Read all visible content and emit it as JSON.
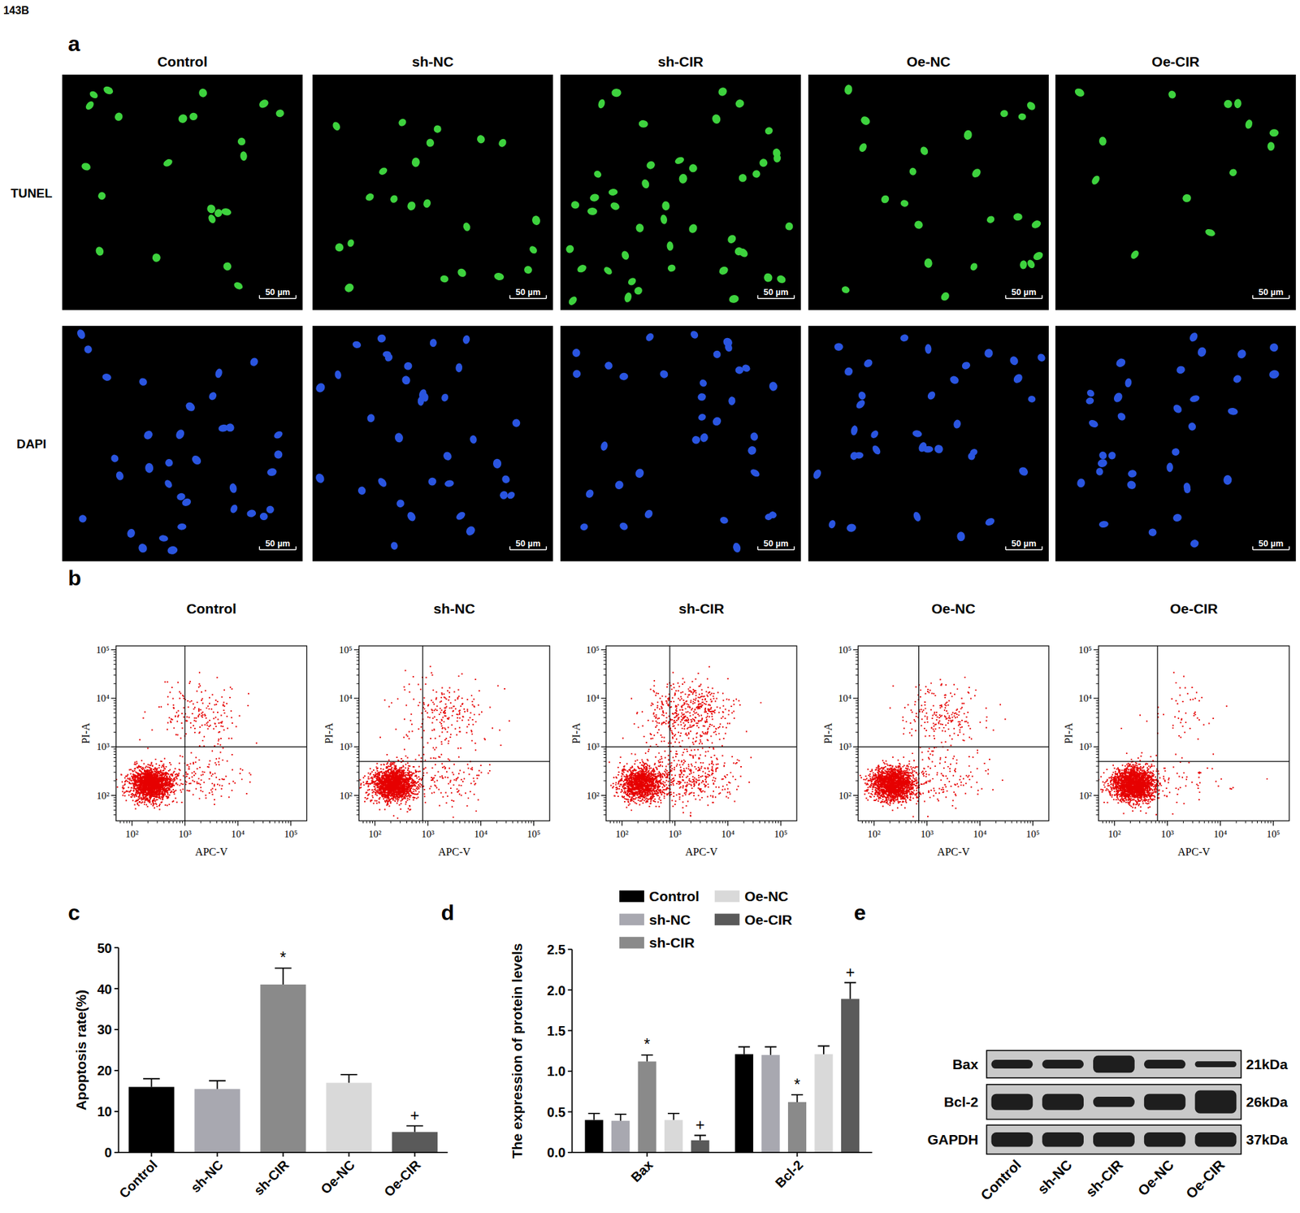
{
  "figure_id": "143B",
  "panel_a": {
    "panel_label": "a",
    "columns": [
      "Control",
      "sh-NC",
      "sh-CIR",
      "Oe-NC",
      "Oe-CIR"
    ],
    "rows": [
      "TUNEL",
      "DAPI"
    ],
    "scale_bar": "50 µm"
  },
  "chart_data": [
    {
      "panel_label": "b",
      "type": "scatter",
      "log": true,
      "x_label": "APC-V",
      "y_label": "PI-A",
      "xlim": [
        50,
        200000
      ],
      "ylim": [
        30,
        120000
      ],
      "xticks": [
        {
          "value": 100,
          "label": "10²"
        },
        {
          "value": 1000,
          "label": "10³"
        },
        {
          "value": 10000,
          "label": "10⁴"
        },
        {
          "value": 100000,
          "label": "10⁵"
        }
      ],
      "yticks": [
        {
          "value": 100,
          "label": "10²"
        },
        {
          "value": 1000,
          "label": "10³"
        },
        {
          "value": 10000,
          "label": "10⁴"
        },
        {
          "value": 100000,
          "label": "10⁵"
        }
      ],
      "color": "#e60000",
      "plots": [
        {
          "title": "Control",
          "gate_x": 1000,
          "gate_y": 1000
        },
        {
          "title": "sh-NC",
          "gate_x": 800,
          "gate_y": 500
        },
        {
          "title": "sh-CIR",
          "gate_x": 800,
          "gate_y": 1000
        },
        {
          "title": "Oe-NC",
          "gate_x": 700,
          "gate_y": 1000
        },
        {
          "title": "Oe-CIR",
          "gate_x": 650,
          "gate_y": 500
        }
      ]
    },
    {
      "panel_label": "c",
      "type": "bar",
      "y_label": "Apoptosis rate(%)",
      "categories": [
        "Control",
        "sh-NC",
        "sh-CIR",
        "Oe-NC",
        "Oe-CIR"
      ],
      "values": [
        16,
        15.5,
        41,
        17,
        5
      ],
      "errors": [
        2,
        2,
        4,
        2,
        1.5
      ],
      "annotations": [
        null,
        null,
        "*",
        null,
        "+"
      ],
      "colors": [
        "#000000",
        "#a8a8b0",
        "#8a8a8a",
        "#d9d9d9",
        "#5a5a5a"
      ],
      "ylim": [
        0,
        50
      ],
      "yticks": [
        0,
        10,
        20,
        30,
        40,
        50
      ]
    },
    {
      "panel_label": "d",
      "type": "bar",
      "y_label": "The expression of protein levels",
      "categories": [
        "Bax",
        "Bcl-2"
      ],
      "legend": "top",
      "series": [
        {
          "name": "Control",
          "color": "#000000",
          "values": [
            0.4,
            1.21
          ],
          "errors": [
            0.08,
            0.09
          ],
          "annotations": [
            null,
            null
          ]
        },
        {
          "name": "sh-NC",
          "color": "#a8a8b0",
          "values": [
            0.39,
            1.2
          ],
          "errors": [
            0.08,
            0.1
          ],
          "annotations": [
            null,
            null
          ]
        },
        {
          "name": "sh-CIR",
          "color": "#8a8a8a",
          "values": [
            1.12,
            0.62
          ],
          "errors": [
            0.08,
            0.09
          ],
          "annotations": [
            "*",
            "*"
          ]
        },
        {
          "name": "Oe-NC",
          "color": "#d9d9d9",
          "values": [
            0.4,
            1.21
          ],
          "errors": [
            0.08,
            0.1
          ],
          "annotations": [
            null,
            null
          ]
        },
        {
          "name": "Oe-CIR",
          "color": "#5a5a5a",
          "values": [
            0.15,
            1.89
          ],
          "errors": [
            0.06,
            0.2
          ],
          "annotations": [
            "+",
            "+"
          ]
        }
      ],
      "ylim": [
        0,
        2.5
      ],
      "yticks": [
        {
          "value": 0,
          "label": "0.0"
        },
        0.5,
        {
          "value": 1,
          "label": "1.0"
        },
        1.5,
        {
          "value": 2,
          "label": "2.0"
        },
        2.5
      ]
    }
  ],
  "panel_e": {
    "panel_label": "e",
    "type": "western_blot",
    "lanes": [
      "Control",
      "sh-NC",
      "sh-CIR",
      "Oe-NC",
      "Oe-CIR"
    ],
    "bands": [
      {
        "name": "Bax",
        "size": "21kDa"
      },
      {
        "name": "Bcl-2",
        "size": "26kDa"
      },
      {
        "name": "GAPDH",
        "size": "37kDa"
      }
    ]
  }
}
